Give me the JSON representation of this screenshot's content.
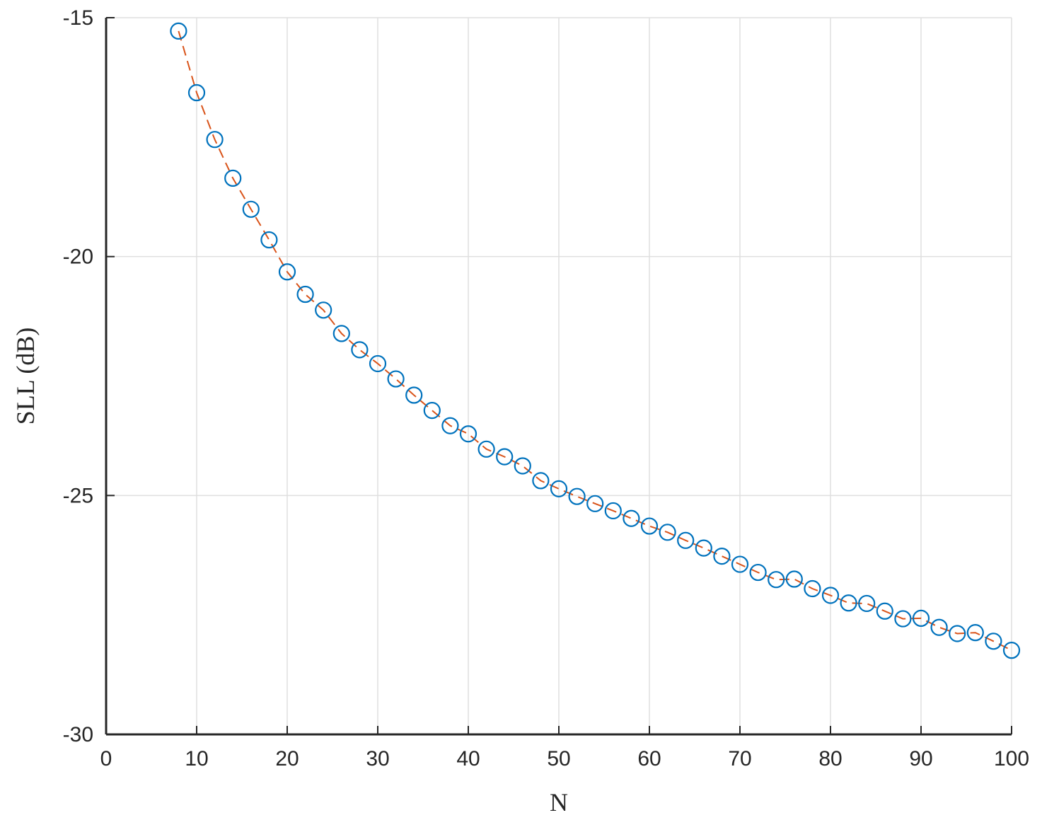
{
  "chart_data": {
    "type": "scatter",
    "title": "",
    "xlabel": "N",
    "ylabel": "SLL (dB)",
    "xlim": [
      0,
      100
    ],
    "ylim": [
      -30,
      -15
    ],
    "xticks": [
      0,
      10,
      20,
      30,
      40,
      50,
      60,
      70,
      80,
      90,
      100
    ],
    "yticks": [
      -15,
      -20,
      -25,
      -30
    ],
    "grid": true,
    "legend": "none",
    "series": [
      {
        "style": "markers",
        "marker": "circle",
        "color": "#0072BD",
        "x": [
          8,
          10,
          12,
          14,
          16,
          18,
          20,
          22,
          24,
          26,
          28,
          30,
          32,
          34,
          36,
          38,
          40,
          42,
          44,
          46,
          48,
          50,
          52,
          54,
          56,
          58,
          60,
          62,
          64,
          66,
          68,
          70,
          72,
          74,
          76,
          78,
          80,
          82,
          84,
          86,
          88,
          90,
          92,
          94,
          96,
          98,
          100
        ],
        "y": [
          -15.28,
          -16.57,
          -17.55,
          -18.36,
          -19.01,
          -19.65,
          -20.32,
          -20.79,
          -21.12,
          -21.61,
          -21.95,
          -22.24,
          -22.56,
          -22.9,
          -23.22,
          -23.54,
          -23.71,
          -24.03,
          -24.19,
          -24.38,
          -24.69,
          -24.86,
          -25.02,
          -25.17,
          -25.32,
          -25.48,
          -25.64,
          -25.77,
          -25.94,
          -26.1,
          -26.27,
          -26.44,
          -26.61,
          -26.76,
          -26.75,
          -26.95,
          -27.09,
          -27.25,
          -27.26,
          -27.42,
          -27.58,
          -27.57,
          -27.76,
          -27.89,
          -27.87,
          -28.05,
          -28.24
        ]
      },
      {
        "style": "dashed-line",
        "color": "#D95319",
        "x": [
          8,
          10,
          12,
          14,
          16,
          18,
          20,
          22,
          24,
          26,
          28,
          30,
          32,
          34,
          36,
          38,
          40,
          42,
          44,
          46,
          48,
          50,
          52,
          54,
          56,
          58,
          60,
          62,
          64,
          66,
          68,
          70,
          72,
          74,
          76,
          78,
          80,
          82,
          84,
          86,
          88,
          90,
          92,
          94,
          96,
          98,
          100
        ],
        "y": [
          -15.28,
          -16.57,
          -17.55,
          -18.36,
          -19.01,
          -19.65,
          -20.32,
          -20.79,
          -21.12,
          -21.61,
          -21.95,
          -22.24,
          -22.56,
          -22.9,
          -23.22,
          -23.54,
          -23.71,
          -24.03,
          -24.19,
          -24.38,
          -24.69,
          -24.86,
          -25.02,
          -25.17,
          -25.32,
          -25.48,
          -25.64,
          -25.77,
          -25.94,
          -26.1,
          -26.27,
          -26.44,
          -26.61,
          -26.76,
          -26.75,
          -26.95,
          -27.09,
          -27.25,
          -27.26,
          -27.42,
          -27.58,
          -27.57,
          -27.76,
          -27.89,
          -27.87,
          -28.05,
          -28.24
        ]
      }
    ]
  }
}
